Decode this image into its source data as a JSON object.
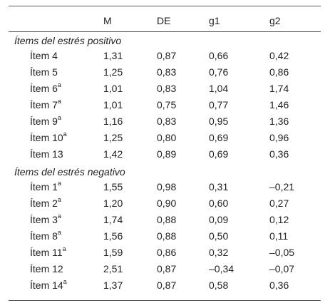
{
  "table": {
    "columns": [
      "M",
      "DE",
      "g1",
      "g2"
    ],
    "sections": [
      {
        "title": "Ítems del estrés positivo",
        "rows": [
          {
            "item": "Ítem 4",
            "values": [
              "1,31",
              "0,87",
              "0,66",
              "0,42"
            ]
          },
          {
            "item": "Ítem 5",
            "values": [
              "1,25",
              "0,83",
              "0,76",
              "0,86"
            ]
          },
          {
            "item": "Ítem 6",
            "note": "a",
            "values": [
              "1,01",
              "0,83",
              "1,04",
              "1,74"
            ]
          },
          {
            "item": "Ítem 7",
            "note": "a",
            "values": [
              "1,01",
              "0,75",
              "0,77",
              "1,46"
            ]
          },
          {
            "item": "Ítem 9",
            "note": "a",
            "values": [
              "1,16",
              "0,83",
              "0,95",
              "1,36"
            ]
          },
          {
            "item": "Ítem 10",
            "note": "a",
            "values": [
              "1,25",
              "0,80",
              "0,69",
              "0,96"
            ]
          },
          {
            "item": "Ítem 13",
            "values": [
              "1,42",
              "0,89",
              "0,69",
              "0,36"
            ]
          }
        ]
      },
      {
        "title": "Ítems del estrés negativo",
        "rows": [
          {
            "item": "Ítem 1",
            "note": "a",
            "values": [
              "1,55",
              "0,98",
              "0,31",
              "–0,21"
            ]
          },
          {
            "item": "Ítem 2",
            "note": "a",
            "values": [
              "1,20",
              "0,90",
              "0,60",
              "0,27"
            ]
          },
          {
            "item": "Ítem 3",
            "note": "a",
            "values": [
              "1,74",
              "0,88",
              "0,09",
              "0,12"
            ]
          },
          {
            "item": "Ítem 8",
            "note": "a",
            "values": [
              "1,56",
              "0,88",
              "0,50",
              "0,11"
            ]
          },
          {
            "item": "Ítem 11",
            "note": "a",
            "values": [
              "1,59",
              "0,86",
              "0,32",
              "–0,05"
            ]
          },
          {
            "item": "Ítem 12",
            "values": [
              "2,51",
              "0,87",
              "–0,34",
              "–0,07"
            ]
          },
          {
            "item": "Ítem 14",
            "note": "a",
            "values": [
              "1,37",
              "0,87",
              "0,58",
              "0,36"
            ]
          }
        ]
      }
    ]
  }
}
